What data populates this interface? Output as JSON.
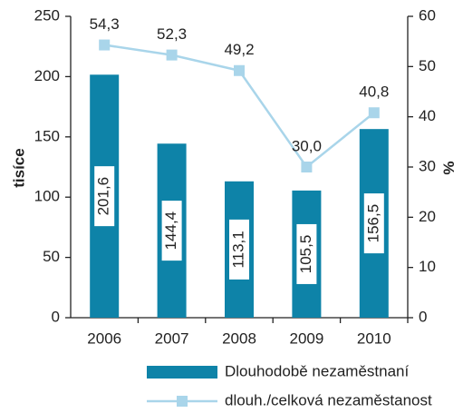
{
  "chart_data": {
    "type": "bar",
    "categories": [
      "2006",
      "2007",
      "2008",
      "2009",
      "2010"
    ],
    "ylabel": "tisíce",
    "y2label": "%",
    "ylim": [
      0,
      250
    ],
    "yticks": [
      0,
      50,
      100,
      150,
      200,
      250
    ],
    "y2lim": [
      0,
      60
    ],
    "y2ticks": [
      0,
      10,
      20,
      30,
      40,
      50,
      60
    ],
    "series": [
      {
        "name": "Dlouhodobě nezaměstnaní",
        "type": "bar",
        "color": "#0e83a8",
        "values": [
          201.6,
          144.4,
          113.1,
          105.5,
          156.5
        ],
        "value_labels": [
          "201,6",
          "144,4",
          "113,1",
          "105,5",
          "156,5"
        ]
      },
      {
        "name": "dlouh./celková nezaměstanost",
        "type": "line",
        "axis": "y2",
        "color": "#a9d5ea",
        "values": [
          54.3,
          52.3,
          49.2,
          30.0,
          40.8
        ],
        "value_labels": [
          "54,3",
          "52,3",
          "49,2",
          "30,0",
          "40,8"
        ]
      }
    ]
  }
}
